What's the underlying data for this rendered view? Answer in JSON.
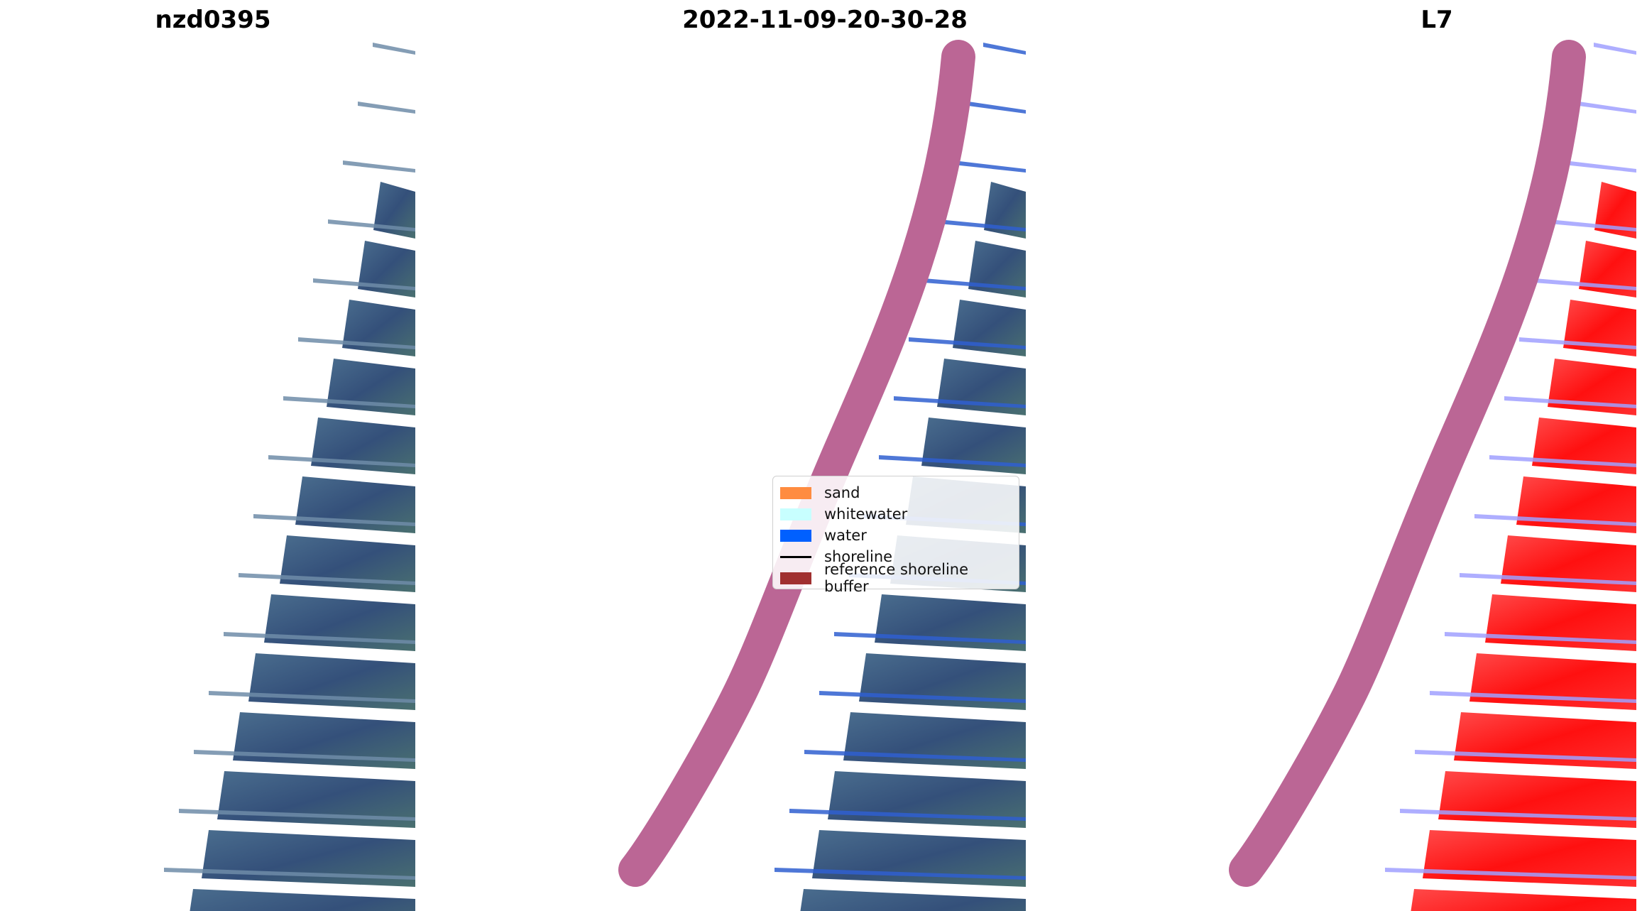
{
  "titles": {
    "site": "nzd0395",
    "date": "2022-11-09-20-30-28",
    "satellite": "L7"
  },
  "legend": {
    "items": [
      {
        "label": "sand",
        "color": "#ff8c40",
        "kind": "patch"
      },
      {
        "label": "whitewater",
        "color": "#c8ffff",
        "kind": "patch"
      },
      {
        "label": "water",
        "color": "#0060ff",
        "kind": "patch"
      },
      {
        "label": "shoreline",
        "color": "#000000",
        "kind": "line"
      },
      {
        "label": "reference shoreline buffer",
        "color": "#a03030",
        "kind": "patch"
      }
    ]
  },
  "colors": {
    "imagery": "#3f5a7e",
    "imagery_green": "#4a7070",
    "buffer": "#bb6695",
    "classified_water": "#ff1a1a",
    "classified_stripe": "#a0a0ff"
  }
}
